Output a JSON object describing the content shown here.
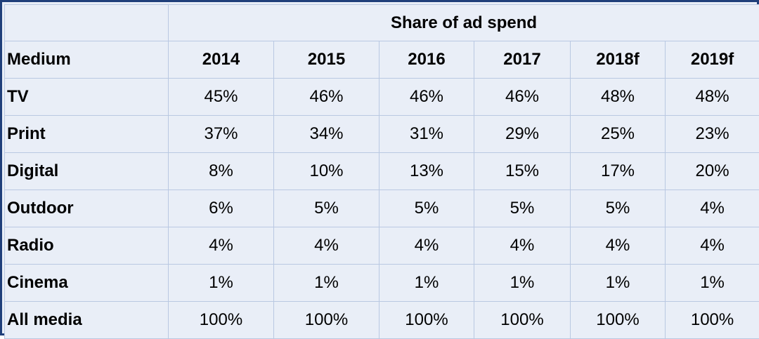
{
  "chart_data": {
    "type": "table",
    "title": "Share of ad spend",
    "row_header": "Medium",
    "columns": [
      "2014",
      "2015",
      "2016",
      "2017",
      "2018f",
      "2019f"
    ],
    "rows": [
      {
        "label": "TV",
        "values": [
          "45%",
          "46%",
          "46%",
          "46%",
          "48%",
          "48%"
        ]
      },
      {
        "label": "Print",
        "values": [
          "37%",
          "34%",
          "31%",
          "29%",
          "25%",
          "23%"
        ]
      },
      {
        "label": "Digital",
        "values": [
          "8%",
          "10%",
          "13%",
          "15%",
          "17%",
          "20%"
        ]
      },
      {
        "label": "Outdoor",
        "values": [
          "6%",
          "5%",
          "5%",
          "5%",
          "5%",
          "4%"
        ]
      },
      {
        "label": "Radio",
        "values": [
          "4%",
          "4%",
          "4%",
          "4%",
          "4%",
          "4%"
        ]
      },
      {
        "label": "Cinema",
        "values": [
          "1%",
          "1%",
          "1%",
          "1%",
          "1%",
          "1%"
        ]
      },
      {
        "label": "All media",
        "values": [
          "100%",
          "100%",
          "100%",
          "100%",
          "100%",
          "100%"
        ]
      }
    ]
  },
  "colors": {
    "border": "#1f3f7a",
    "background": "#e9eef7",
    "gridline": "#b9c8e2"
  }
}
